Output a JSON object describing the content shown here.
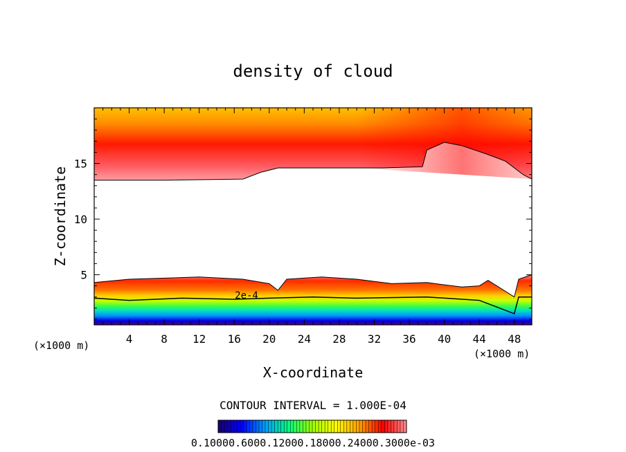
{
  "chart_data": {
    "type": "heatmap",
    "title": "density of cloud",
    "xlabel": "X-coordinate",
    "ylabel": "Z-coordinate",
    "x_unit_left": "(×1000 m)",
    "x_unit_right": "(×1000 m)",
    "xlim": [
      0,
      50
    ],
    "ylim": [
      0.5,
      20
    ],
    "x_ticks": [
      4,
      8,
      12,
      16,
      20,
      24,
      28,
      32,
      36,
      40,
      44,
      48
    ],
    "y_ticks": [
      5,
      10,
      15
    ],
    "contour_label": "2e-4",
    "contour_interval_text": "CONTOUR INTERVAL = 1.000E-04",
    "colorbar_text": "0.10000.6000.12000.18000.24000.3000e-03",
    "colorbar_stops": [
      "#1a0066",
      "#0000ff",
      "#00a0ff",
      "#00ff80",
      "#a0ff00",
      "#ffff00",
      "#ffa000",
      "#ff0000",
      "#ff9090"
    ],
    "upper_layer": {
      "base_z": [
        [
          0,
          13.5
        ],
        [
          8,
          13.5
        ],
        [
          17,
          13.6
        ],
        [
          19,
          14.2
        ],
        [
          21,
          14.6
        ],
        [
          26,
          14.6
        ],
        [
          33,
          14.6
        ],
        [
          37.5,
          14.7
        ],
        [
          38,
          16.2
        ],
        [
          40,
          16.9
        ],
        [
          42,
          16.6
        ],
        [
          45,
          15.8
        ],
        [
          47,
          15.2
        ],
        [
          49,
          14.0
        ],
        [
          50,
          13.6
        ]
      ],
      "top_z": 20
    },
    "lower_layer": {
      "top_z": [
        [
          0,
          4.3
        ],
        [
          4,
          4.6
        ],
        [
          12,
          4.8
        ],
        [
          17,
          4.6
        ],
        [
          20,
          4.2
        ],
        [
          21,
          3.6
        ],
        [
          22,
          4.6
        ],
        [
          26,
          4.8
        ],
        [
          30,
          4.6
        ],
        [
          34,
          4.2
        ],
        [
          38,
          4.3
        ],
        [
          42,
          3.9
        ],
        [
          44,
          4.0
        ],
        [
          45,
          4.5
        ],
        [
          48,
          3.0
        ],
        [
          48.5,
          4.6
        ],
        [
          50,
          5.0
        ]
      ],
      "contour_2e4_z": [
        [
          0,
          2.9
        ],
        [
          4,
          2.7
        ],
        [
          10,
          2.9
        ],
        [
          16,
          2.8
        ],
        [
          20,
          2.9
        ],
        [
          25,
          3.0
        ],
        [
          30,
          2.9
        ],
        [
          38,
          3.0
        ],
        [
          44,
          2.7
        ],
        [
          48,
          1.5
        ],
        [
          48.5,
          3.0
        ],
        [
          50,
          3.0
        ]
      ]
    }
  }
}
